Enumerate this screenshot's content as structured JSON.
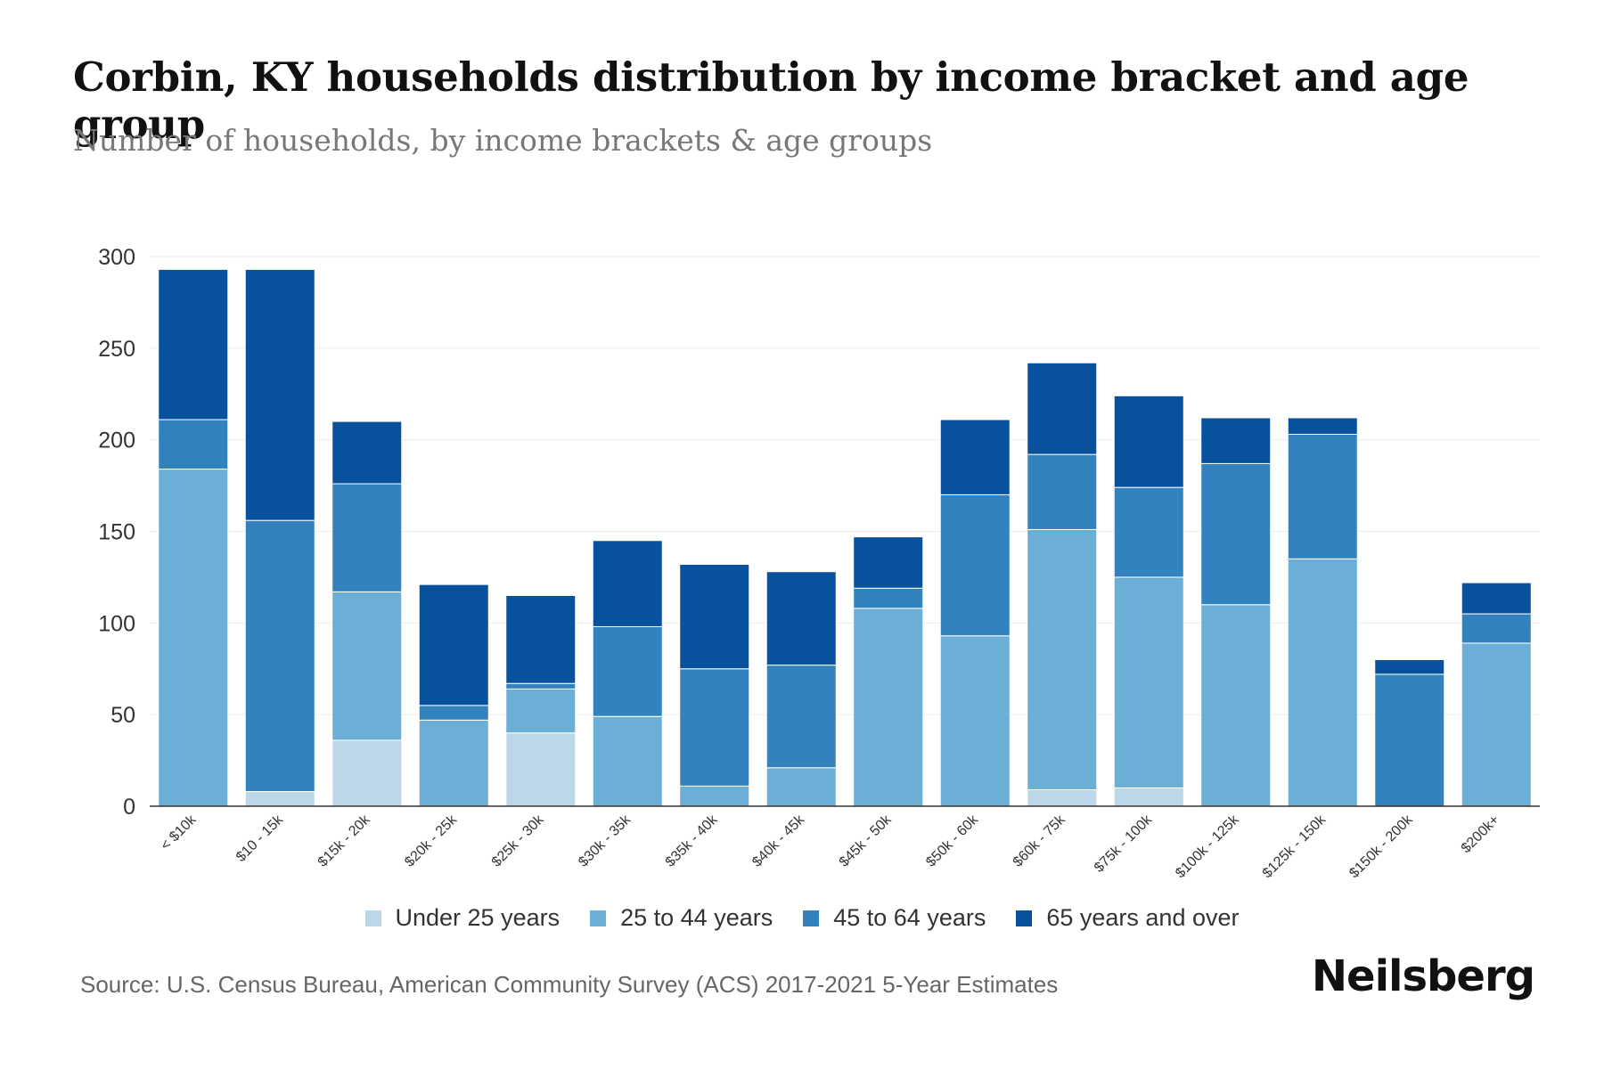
{
  "header": {
    "title": "Corbin, KY households distribution by income bracket and age group",
    "subtitle": "Number of households, by income brackets & age groups"
  },
  "footer": {
    "source": "Source: U.S. Census Bureau, American Community Survey (ACS) 2017-2021 5-Year Estimates",
    "brand": "Neilsberg"
  },
  "legend": [
    {
      "name": "Under 25 years",
      "color": "#bcd7e8"
    },
    {
      "name": "25 to 44 years",
      "color": "#6baed6"
    },
    {
      "name": "45 to 64 years",
      "color": "#3182bd"
    },
    {
      "name": "65 years and over",
      "color": "#08519c"
    }
  ],
  "chart_data": {
    "type": "bar",
    "stacked": true,
    "title": "Corbin, KY households distribution by income bracket and age group",
    "subtitle": "Number of households, by income brackets & age groups",
    "xlabel": "",
    "ylabel": "",
    "ylim": [
      0,
      300
    ],
    "yticks": [
      0,
      50,
      100,
      150,
      200,
      250,
      300
    ],
    "grid": true,
    "legend_position": "bottom",
    "categories": [
      "< $10k",
      "$10 - 15k",
      "$15k - 20k",
      "$20k - 25k",
      "$25k - 30k",
      "$30k - 35k",
      "$35k - 40k",
      "$40k - 45k",
      "$45k - 50k",
      "$50k - 60k",
      "$60k - 75k",
      "$75k - 100k",
      "$100k - 125k",
      "$125k - 150k",
      "$150k - 200k",
      "$200k+"
    ],
    "series": [
      {
        "name": "Under 25 years",
        "color": "#bcd7e8",
        "values": [
          0,
          8,
          36,
          0,
          40,
          0,
          0,
          0,
          0,
          0,
          9,
          10,
          0,
          0,
          0,
          0
        ]
      },
      {
        "name": "25 to 44 years",
        "color": "#6baed6",
        "values": [
          184,
          0,
          81,
          47,
          24,
          49,
          11,
          21,
          108,
          93,
          142,
          115,
          110,
          135,
          0,
          89
        ]
      },
      {
        "name": "45 to 64 years",
        "color": "#3182bd",
        "values": [
          27,
          148,
          59,
          8,
          3,
          49,
          64,
          56,
          11,
          77,
          41,
          49,
          77,
          68,
          72,
          16
        ]
      },
      {
        "name": "65 years and over",
        "color": "#08519c",
        "values": [
          82,
          137,
          34,
          66,
          48,
          47,
          57,
          51,
          28,
          41,
          50,
          50,
          25,
          9,
          8,
          17
        ]
      }
    ]
  }
}
